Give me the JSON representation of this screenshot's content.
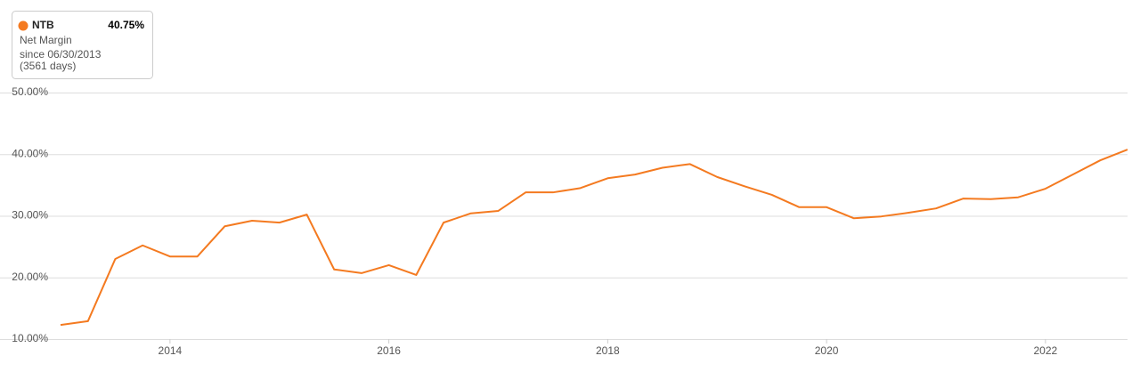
{
  "chart_data": {
    "type": "line",
    "tooltip": {
      "ticker": "NTB",
      "value": "40.75%",
      "metric": "Net Margin",
      "since": "since 06/30/2013",
      "days": "(3561 days)"
    },
    "x": [
      2013,
      2013.25,
      2013.5,
      2013.75,
      2014,
      2014.25,
      2014.5,
      2014.75,
      2015,
      2015.25,
      2015.5,
      2015.75,
      2016,
      2016.25,
      2016.5,
      2016.75,
      2017,
      2017.25,
      2017.5,
      2017.75,
      2018,
      2018.25,
      2018.5,
      2018.75,
      2019,
      2019.25,
      2019.5,
      2019.75,
      2020,
      2020.25,
      2020.5,
      2020.75,
      2021,
      2021.25,
      2021.5,
      2021.75,
      2022,
      2022.25,
      2022.5,
      2022.75
    ],
    "series": [
      {
        "name": "NTB",
        "color": "#f47a20",
        "values": [
          12.3,
          12.9,
          23.0,
          25.2,
          23.4,
          23.4,
          28.3,
          29.2,
          28.9,
          30.2,
          21.3,
          20.7,
          22.0,
          20.4,
          28.9,
          30.4,
          30.8,
          33.8,
          33.8,
          34.5,
          36.1,
          36.7,
          37.8,
          38.4,
          36.3,
          34.8,
          33.4,
          31.4,
          31.4,
          29.6,
          29.9,
          30.5,
          31.2,
          32.8,
          32.7,
          33.0,
          34.4,
          36.7,
          39.0,
          40.75
        ]
      }
    ],
    "xlim": [
      2013,
      2022.75
    ],
    "xticks": [
      2014,
      2016,
      2018,
      2020,
      2022
    ],
    "ylim": [
      10,
      50
    ],
    "yticks": [
      {
        "value": 10,
        "label": "10.00%"
      },
      {
        "value": 20,
        "label": "20.00%"
      },
      {
        "value": 30,
        "label": "30.00%"
      },
      {
        "value": 40,
        "label": "40.00%"
      },
      {
        "value": 50,
        "label": "50.00%"
      }
    ],
    "grid": true
  }
}
